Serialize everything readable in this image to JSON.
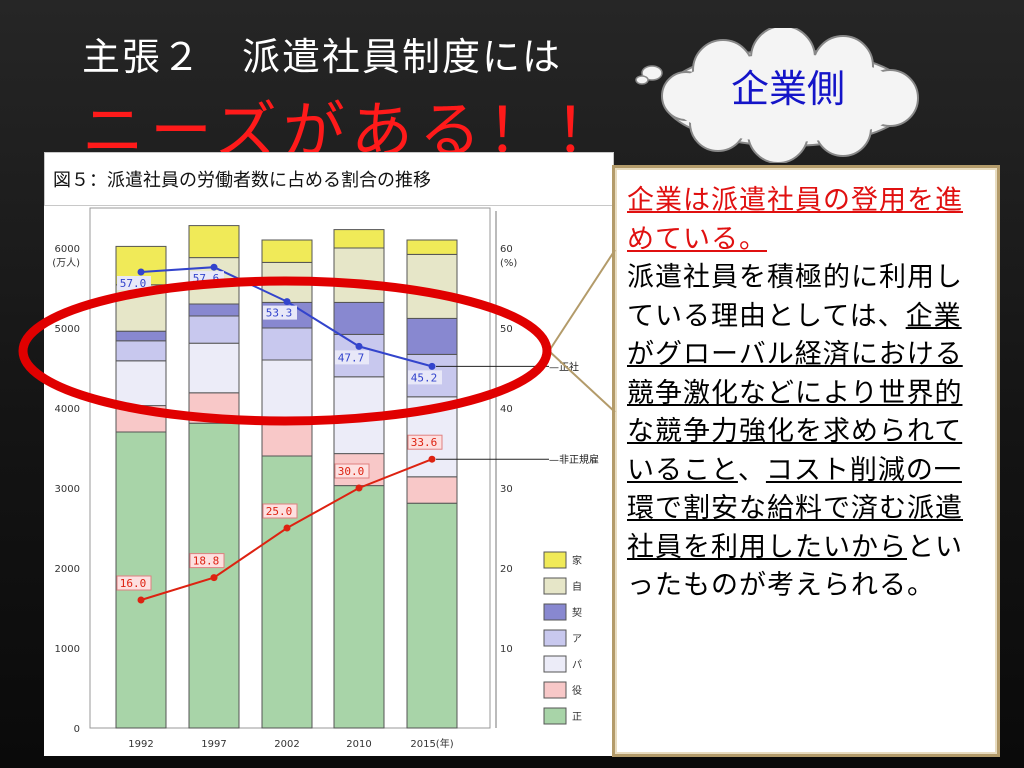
{
  "slide": {
    "title_line1": "主張２　派遣社員制度には",
    "title_line2": "ニーズがある！！",
    "cloud_label": "企業側",
    "figure_caption": "図５：派遣社員の労働者数に占める割合の推移",
    "textbox": {
      "heading": "企業は派遣社員の登用を進めている。",
      "p1": "派遣社員を積極的に利用している理由としては、",
      "u1": "企業がグローバル経済における競争激化などにより世界的な競争力強化を求められていること",
      "p2": "、",
      "u2": "コスト削減の一環で割安な給料で済む派遣社員を利用したいから",
      "p3": "といったものが考えられる。"
    },
    "colors": {
      "title_red": "#ff1a1a",
      "cloud_text": "#1414c8",
      "heading_red": "#e01010",
      "ellipse_red": "#e00000",
      "callout_border": "#b39b6a"
    }
  },
  "chart_data": {
    "type": "bar",
    "stacked": true,
    "categories": [
      "1992",
      "1997",
      "2002",
      "2010",
      "2015"
    ],
    "x_last_label": "2015(年)",
    "yleft": {
      "ticks": [
        "0",
        "1000",
        "2000",
        "3000",
        "4000",
        "5000",
        "6000"
      ],
      "unit_label": "(万人)",
      "ylim": [
        0,
        6500
      ]
    },
    "yright": {
      "ticks": [
        "10",
        "20",
        "30",
        "40",
        "50",
        "60"
      ],
      "unit_label": "(%)",
      "ylim": [
        0,
        65
      ]
    },
    "bar_series": [
      {
        "legend": "正",
        "color": "#a8d4a8",
        "values": [
          3700,
          3810,
          3400,
          3030,
          2810
        ]
      },
      {
        "legend": "役",
        "color": "#f8c8c8",
        "values": [
          330,
          380,
          420,
          400,
          330
        ]
      },
      {
        "legend": "パ",
        "color": "#ececf8",
        "values": [
          560,
          620,
          780,
          960,
          1000
        ]
      },
      {
        "legend": "ア",
        "color": "#c8c8ee",
        "values": [
          250,
          340,
          400,
          530,
          530
        ]
      },
      {
        "legend": "契",
        "color": "#8888d0",
        "values": [
          120,
          150,
          320,
          400,
          450
        ]
      },
      {
        "legend": "自",
        "color": "#e6e6c8",
        "values": [
          580,
          580,
          500,
          680,
          800
        ]
      },
      {
        "legend": "家",
        "color": "#f0ea58",
        "values": [
          480,
          400,
          280,
          230,
          180
        ]
      }
    ],
    "line_series": [
      {
        "label": "正社",
        "color": "#3344cc",
        "values": [
          57.0,
          57.6,
          53.3,
          47.7,
          45.2
        ],
        "labels": [
          "57.0",
          "57.6",
          "53.3",
          "47.7",
          "45.2"
        ]
      },
      {
        "label": "非正規雇",
        "color": "#dd2211",
        "values": [
          16.0,
          18.8,
          25.0,
          30.0,
          33.6
        ],
        "labels": [
          "16.0",
          "18.8",
          "25.0",
          "30.0",
          "33.6"
        ]
      }
    ]
  }
}
